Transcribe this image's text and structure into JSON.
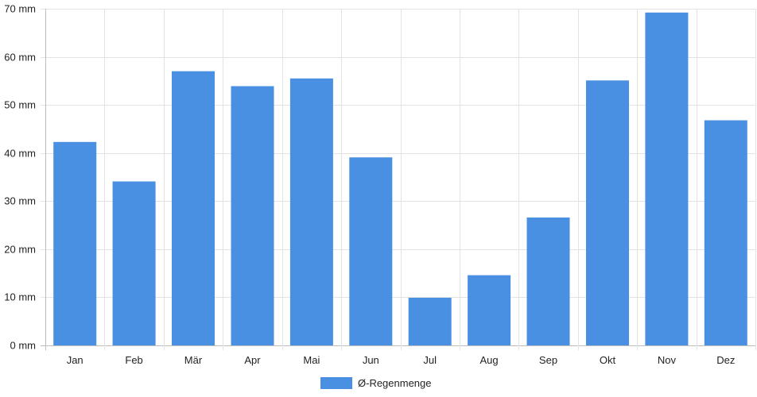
{
  "chart_data": {
    "type": "bar",
    "categories": [
      "Jan",
      "Feb",
      "Mär",
      "Apr",
      "Mai",
      "Jun",
      "Jul",
      "Aug",
      "Sep",
      "Okt",
      "Nov",
      "Dez"
    ],
    "series": [
      {
        "name": "Ø-Regenmenge",
        "values": [
          42.3,
          34.1,
          57.0,
          53.9,
          55.5,
          39.1,
          9.9,
          14.6,
          26.6,
          55.1,
          69.2,
          46.8
        ],
        "color": "#4a90e2"
      }
    ],
    "ylim": [
      0,
      70
    ],
    "y_ticks": [
      0,
      10,
      20,
      30,
      40,
      50,
      60,
      70
    ],
    "y_unit": "mm",
    "grid": true,
    "legend_position": "bottom-center"
  }
}
